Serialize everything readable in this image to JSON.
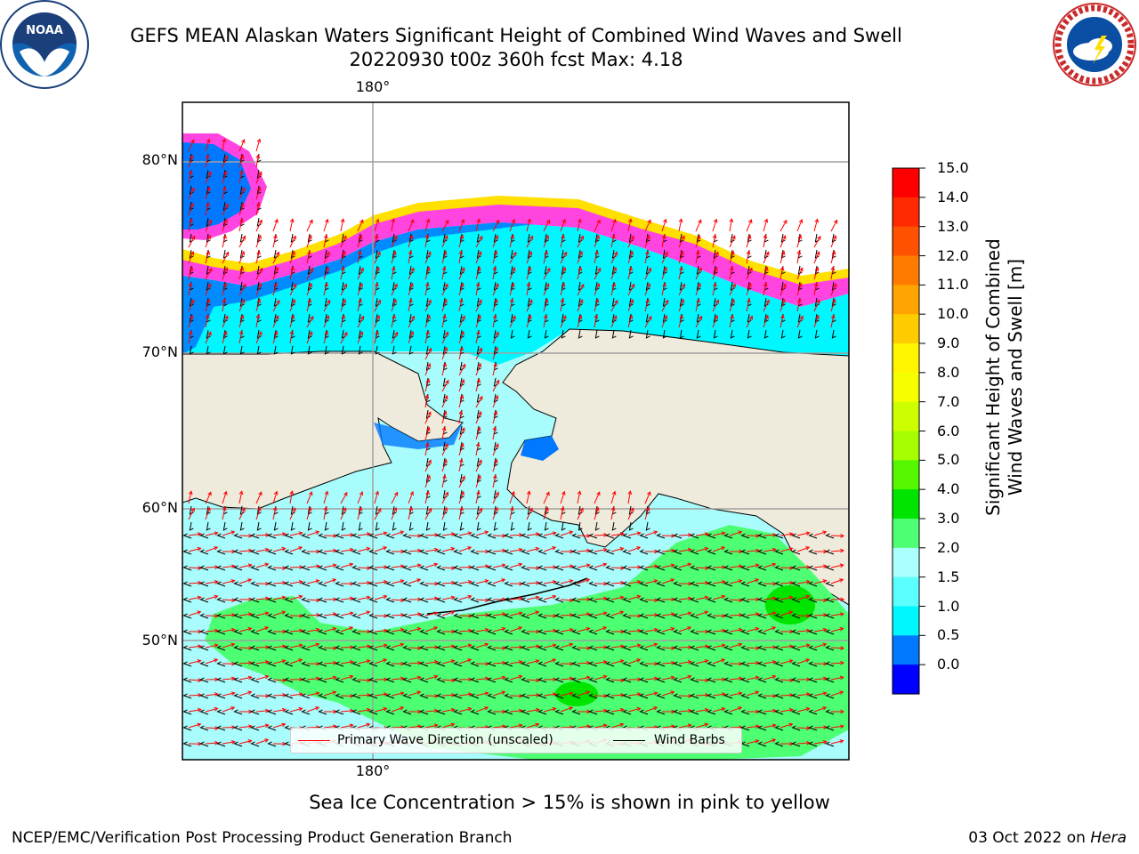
{
  "header": {
    "title_line1": "GEFS MEAN Alaskan Waters Significant Height of Combined Wind Waves and Swell",
    "title_line2": "20220930 t00z 360h fcst   Max: 4.18"
  },
  "logos": {
    "left": {
      "text": "NOAA",
      "ring_text": "NATIONAL OCEANIC AND ATMOSPHERIC ADMINISTRATION · U.S. DEPARTMENT OF COMMERCE"
    },
    "right": {
      "ring_text": "NATIONAL WEATHER SERVICE"
    }
  },
  "map": {
    "lon_label_top": "180°",
    "lon_label_bottom": "180°",
    "lat_labels": [
      "80°N",
      "70°N",
      "60°N",
      "50°N"
    ],
    "ocean_base_color": "#a8fcfc",
    "land_color": "#efebdc",
    "legend": {
      "wave_dir_label": "Primary Wave Direction (unscaled)",
      "wind_barb_label": "Wind Barbs",
      "wave_dir_color": "#ff0000",
      "wind_barb_color": "#000000"
    }
  },
  "colorbar": {
    "title_line1": "Significant Height of Combined",
    "title_line2": "Wind Waves and Swell [m]",
    "ticks": [
      "15.0",
      "14.0",
      "13.0",
      "12.0",
      "11.0",
      "10.0",
      "9.0",
      "8.0",
      "7.0",
      "6.0",
      "5.0",
      "4.0",
      "3.0",
      "2.0",
      "1.5",
      "1.0",
      "0.5",
      "0.0"
    ],
    "colors_top_to_bottom": [
      "#ff0000",
      "#ff2a00",
      "#ff5200",
      "#ff7b00",
      "#ffa400",
      "#ffcc00",
      "#fff500",
      "#f6ff00",
      "#ceff00",
      "#a6ff00",
      "#55f700",
      "#00e400",
      "#4dff72",
      "#aaffff",
      "#5bfffe",
      "#00f7ff",
      "#0078ff",
      "#0000ff"
    ]
  },
  "caption": "Sea Ice Concentration > 15% is shown in pink to yellow",
  "footer": {
    "left": "NCEP/EMC/Verification Post Processing Product Generation Branch",
    "right_date": "03 Oct 2022 on",
    "right_host": "Hera"
  }
}
